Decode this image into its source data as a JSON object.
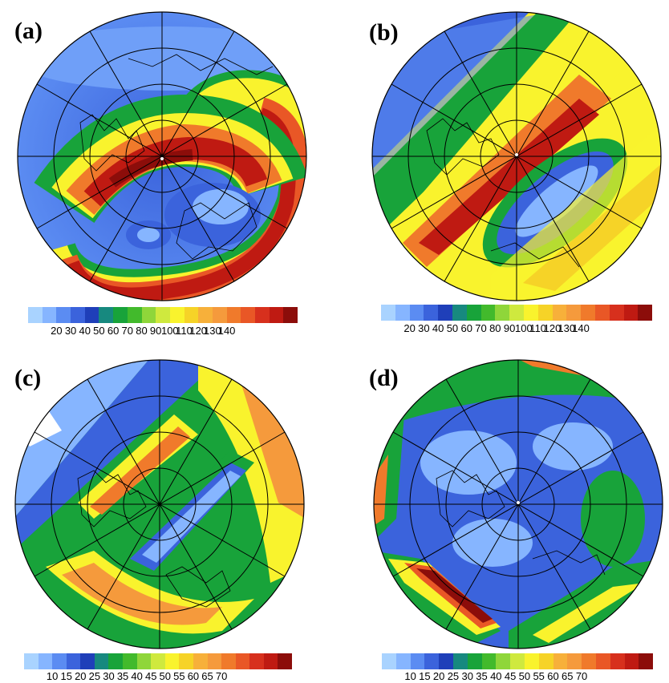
{
  "panels": [
    {
      "label": "(a)",
      "ticks": [
        "20",
        "30",
        "40",
        "50",
        "60",
        "70",
        "80",
        "90",
        "100",
        "110",
        "120",
        "130",
        "140"
      ]
    },
    {
      "label": "(b)",
      "ticks": [
        "20",
        "30",
        "40",
        "50",
        "60",
        "70",
        "80",
        "90",
        "100",
        "110",
        "120",
        "130",
        "140"
      ]
    },
    {
      "label": "(c)",
      "ticks": [
        "10",
        "15",
        "20",
        "25",
        "30",
        "35",
        "40",
        "45",
        "50",
        "55",
        "60",
        "65",
        "70"
      ]
    },
    {
      "label": "(d)",
      "ticks": [
        "10",
        "15",
        "20",
        "25",
        "30",
        "35",
        "40",
        "45",
        "50",
        "55",
        "60",
        "65",
        "70"
      ]
    }
  ],
  "colormap": [
    "#a9d3ff",
    "#86b5ff",
    "#5b8cf2",
    "#3b63dc",
    "#1f3fb9",
    "#17897f",
    "#18a33a",
    "#42ba2c",
    "#8fd63a",
    "#cfe93e",
    "#f9f32d",
    "#f6d327",
    "#f7b03a",
    "#f59a3c",
    "#f07a2b",
    "#e95726",
    "#d7301d",
    "#bf1a12",
    "#8c0d0a"
  ]
}
